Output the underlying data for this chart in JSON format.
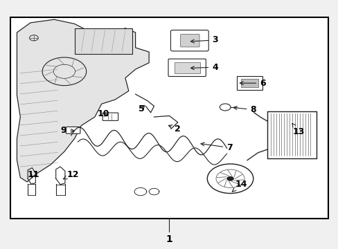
{
  "background_color": "#f0f0f0",
  "border_color": "#000000",
  "label_color": "#000000",
  "dark_color": "#222222",
  "gray_color": "#555555",
  "img_size": [
    489,
    360
  ],
  "dpi": 100,
  "label_font_size": 9,
  "border_lw": 1.5,
  "line_lw": 0.8
}
